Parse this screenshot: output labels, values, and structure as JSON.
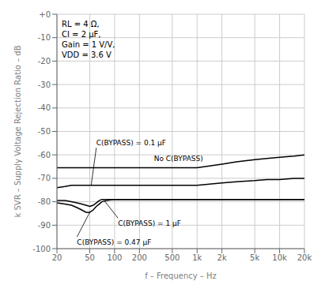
{
  "chart_data": {
    "type": "line",
    "log": "x",
    "grid": true,
    "xlabel": "f – Frequency – Hz",
    "ylabel": "k SVR – Supply Voltage Rejection Ratio – dB",
    "xlim": [
      20,
      20000
    ],
    "ylim": [
      -100,
      0
    ],
    "xticks": [
      20,
      50,
      100,
      200,
      500,
      {
        "value": 1000,
        "label": "1k"
      },
      {
        "value": 2000,
        "label": "2k"
      },
      {
        "value": 5000,
        "label": "5k"
      },
      {
        "value": 10000,
        "label": "10k"
      },
      {
        "value": 20000,
        "label": "20k"
      }
    ],
    "yticks": [
      {
        "value": 0,
        "label": "+0"
      },
      -10,
      -20,
      -30,
      -40,
      -50,
      -60,
      -70,
      -80,
      -90,
      -100
    ],
    "series": [
      {
        "color": "#000000",
        "x": [
          20,
          25,
          30,
          40,
          50,
          70,
          100,
          150,
          200,
          300,
          500,
          700,
          1000,
          2000,
          3000,
          5000,
          7000,
          10000,
          15000,
          20000
        ],
        "values": [
          -65.5,
          -65.5,
          -65.5,
          -65.5,
          -65.5,
          -65.5,
          -65.5,
          -65.5,
          -65.5,
          -65.5,
          -65.5,
          -65.5,
          -65.5,
          -64,
          -63,
          -62,
          -61.5,
          -61,
          -60.5,
          -60
        ]
      },
      {
        "color": "#000000",
        "x": [
          20,
          25,
          30,
          40,
          50,
          60,
          70,
          80,
          100,
          150,
          200,
          300,
          500,
          700,
          1000,
          2000,
          3000,
          5000,
          7000,
          10000,
          15000,
          20000
        ],
        "values": [
          -74,
          -73.5,
          -73,
          -73,
          -73,
          -73,
          -73,
          -73,
          -73,
          -73,
          -73,
          -73,
          -73,
          -73,
          -73,
          -72,
          -71.5,
          -71,
          -70.5,
          -70.5,
          -70,
          -70
        ]
      },
      {
        "color": "#000000",
        "x": [
          20,
          25,
          30,
          35,
          40,
          45,
          50,
          55,
          60,
          65,
          70,
          80,
          100,
          150,
          200,
          300,
          500,
          700,
          1000,
          2000,
          5000,
          10000,
          20000
        ],
        "values": [
          -79.5,
          -79.5,
          -80,
          -80.5,
          -81,
          -81.5,
          -82,
          -81.5,
          -80.5,
          -79.5,
          -79,
          -79,
          -79,
          -79,
          -79,
          -79,
          -79,
          -79,
          -79,
          -79,
          -79,
          -79,
          -79
        ]
      },
      {
        "color": "#000000",
        "x": [
          20,
          25,
          30,
          35,
          40,
          45,
          50,
          55,
          60,
          65,
          70,
          80,
          100,
          150,
          200,
          300,
          500,
          700,
          1000,
          2000,
          5000,
          10000,
          20000
        ],
        "values": [
          -80.5,
          -81,
          -81.5,
          -82.5,
          -83.5,
          -84.5,
          -84.5,
          -83.5,
          -82,
          -81,
          -80,
          -79.5,
          -79,
          -79,
          -79,
          -79,
          -79,
          -79,
          -79,
          -79,
          -79,
          -79,
          -79
        ]
      }
    ],
    "annotations": [
      {
        "text": "RL = 4 Ω,\nCI = 2 μF,\nGain = 1 V/V,\nVDD = 3.6 V"
      },
      {
        "text": "C(BYPASS) = 0.1 μF",
        "x": 60,
        "y": -57,
        "arrow": [
          52,
          -73
        ]
      },
      {
        "text": "No C(BYPASS)",
        "x": 300,
        "y": -63.5
      },
      {
        "text": "C(BYPASS) = 1 μF",
        "x": 110,
        "y": -87,
        "arrow": [
          75,
          -79.5
        ]
      },
      {
        "text": "C(BYPASS) = 0.47 μF",
        "x": 35,
        "y": -95,
        "arrow": [
          50,
          -84.5
        ]
      }
    ]
  }
}
